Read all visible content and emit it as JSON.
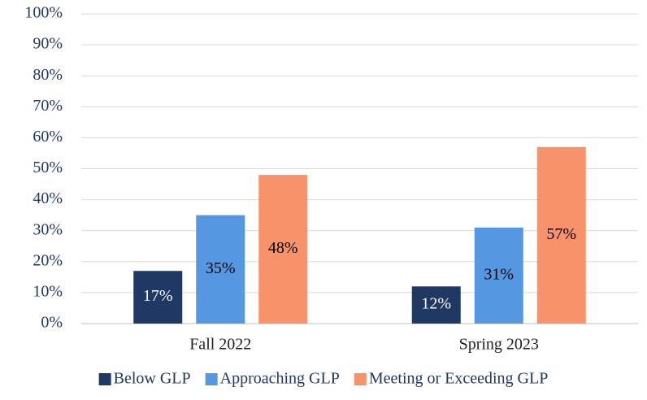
{
  "chart_data": {
    "type": "bar",
    "categories": [
      "Fall 2022",
      "Spring 2023"
    ],
    "series": [
      {
        "name": "Below GLP",
        "color": "#203864",
        "values": [
          17,
          12
        ],
        "value_labels": [
          "17%",
          "12%"
        ],
        "label_color": "#ffffff"
      },
      {
        "name": "Approaching GLP",
        "color": "#5597e0",
        "values": [
          35,
          31
        ],
        "value_labels": [
          "35%",
          "31%"
        ],
        "label_color": "#000000"
      },
      {
        "name": "Meeting or Exceeding GLP",
        "color": "#f8926a",
        "values": [
          48,
          57
        ],
        "value_labels": [
          "48%",
          "57%"
        ],
        "label_color": "#000000"
      }
    ],
    "ylim": [
      0,
      100
    ],
    "yticks": [
      {
        "value": 0,
        "label": "0%"
      },
      {
        "value": 10,
        "label": "10%"
      },
      {
        "value": 20,
        "label": "20%"
      },
      {
        "value": 30,
        "label": "30%"
      },
      {
        "value": 40,
        "label": "40%"
      },
      {
        "value": 50,
        "label": "50%"
      },
      {
        "value": 60,
        "label": "60%"
      },
      {
        "value": 70,
        "label": "70%"
      },
      {
        "value": 80,
        "label": "80%"
      },
      {
        "value": 90,
        "label": "90%"
      },
      {
        "value": 100,
        "label": "100%"
      }
    ],
    "grid": true,
    "legend": "bottom"
  }
}
